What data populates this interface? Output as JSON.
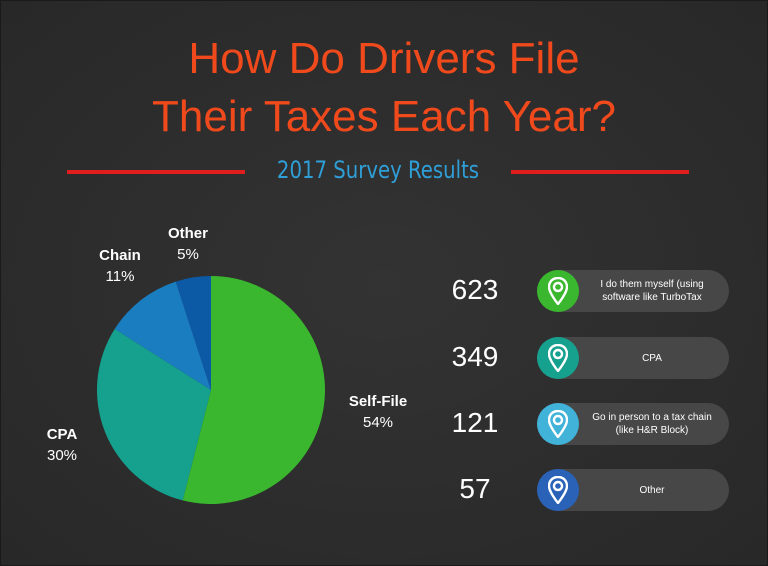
{
  "header": {
    "title_line1": "How Do Drivers File",
    "title_line2": "Their Taxes Each Year?",
    "subtitle": "2017 Survey Results"
  },
  "chart_data": {
    "type": "pie",
    "slices": [
      {
        "label": "Self-File",
        "percent_label": "54%",
        "value": 54,
        "color": "#3ab72e"
      },
      {
        "label": "CPA",
        "percent_label": "30%",
        "value": 30,
        "color": "#16a08e"
      },
      {
        "label": "Chain",
        "percent_label": "11%",
        "value": 11,
        "color": "#1a7dc0"
      },
      {
        "label": "Other",
        "percent_label": "5%",
        "value": 5,
        "color": "#0c5aa6"
      }
    ]
  },
  "legend": [
    {
      "count": "623",
      "text": "I do them myself (using software like TurboTax",
      "color": "#3ab72e"
    },
    {
      "count": "349",
      "text": "CPA",
      "color": "#16a08e"
    },
    {
      "count": "121",
      "text": "Go in person to a tax chain (like H&R Block)",
      "color": "#41b2d8"
    },
    {
      "count": "57",
      "text": "Other",
      "color": "#2a62b8"
    }
  ]
}
